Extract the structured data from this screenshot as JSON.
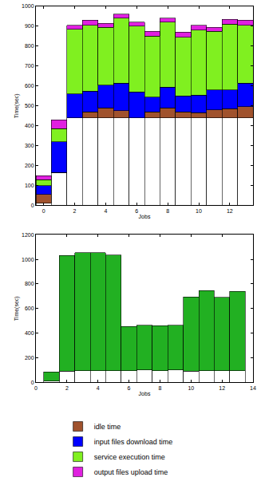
{
  "chart_data": [
    {
      "type": "bar",
      "stacked": true,
      "xlabel": "Jobs",
      "ylabel": "Time(sec)",
      "x": [
        0,
        1,
        2,
        3,
        4,
        5,
        6,
        7,
        8,
        9,
        10,
        11,
        12,
        13
      ],
      "xlim": [
        -0.5,
        13.5
      ],
      "xticks": [
        0,
        2,
        4,
        6,
        8,
        10,
        12
      ],
      "ylim": [
        0,
        1000
      ],
      "yticks": [
        0,
        100,
        200,
        300,
        400,
        500,
        600,
        700,
        800,
        900,
        1000
      ],
      "legend": "bottom",
      "series": [
        {
          "color": "#ffffff",
          "values": [
            10,
            165,
            440,
            440,
            440,
            440,
            440,
            440,
            440,
            440,
            440,
            440,
            440,
            440
          ]
        },
        {
          "name": "idle time",
          "color": "#a0522d",
          "values": [
            45,
            0,
            0,
            30,
            50,
            35,
            0,
            30,
            50,
            30,
            25,
            40,
            45,
            55
          ]
        },
        {
          "name": "input files download time",
          "color": "#0000ff",
          "values": [
            45,
            155,
            120,
            105,
            115,
            140,
            130,
            75,
            105,
            80,
            90,
            100,
            95,
            120
          ]
        },
        {
          "name": "service execution time",
          "color": "#80f020",
          "values": [
            30,
            65,
            325,
            330,
            290,
            325,
            330,
            305,
            325,
            295,
            325,
            295,
            330,
            290
          ]
        },
        {
          "name": "output files upload time",
          "color": "#e020e0",
          "values": [
            20,
            45,
            20,
            25,
            20,
            20,
            20,
            25,
            20,
            25,
            25,
            20,
            25,
            25
          ]
        }
      ]
    },
    {
      "type": "bar",
      "stacked": true,
      "xlabel": "Jobs",
      "ylabel": "Time(sec)",
      "x": [
        1,
        2,
        3,
        4,
        5,
        6,
        7,
        8,
        9,
        10,
        11,
        12,
        13
      ],
      "xlim": [
        0,
        14
      ],
      "xticks": [
        0,
        2,
        4,
        6,
        8,
        10,
        12,
        14
      ],
      "ylim": [
        0,
        1200
      ],
      "yticks": [
        0,
        200,
        400,
        600,
        800,
        1000,
        1200
      ],
      "series": [
        {
          "color": "#ffffff",
          "values": [
            10,
            90,
            95,
            95,
            95,
            95,
            100,
            95,
            100,
            90,
            95,
            95,
            95
          ]
        },
        {
          "color": "#22b022",
          "values": [
            75,
            940,
            960,
            960,
            940,
            360,
            365,
            365,
            365,
            605,
            650,
            595,
            645
          ]
        }
      ]
    }
  ]
}
